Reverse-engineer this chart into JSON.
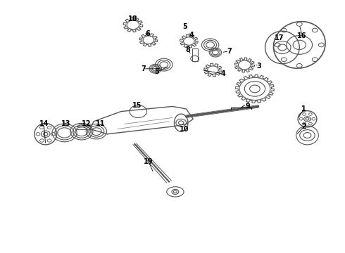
{
  "background_color": "#ffffff",
  "figure_width": 4.9,
  "figure_height": 3.6,
  "dpi": 100,
  "line_color": "#000000",
  "part_color": "#555555",
  "label_fontsize": 7,
  "label_fontweight": "bold"
}
